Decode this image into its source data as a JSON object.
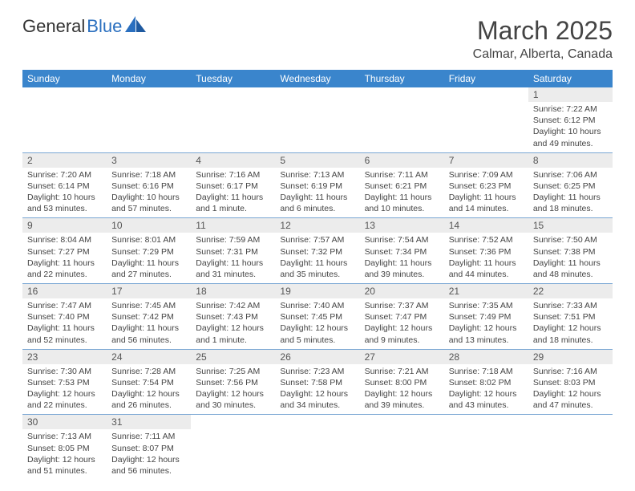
{
  "logo": {
    "part1": "General",
    "part2": "Blue",
    "icon_color": "#2a6fbf"
  },
  "header": {
    "title": "March 2025",
    "location": "Calmar, Alberta, Canada",
    "title_fontsize": 32,
    "location_fontsize": 16,
    "title_color": "#444444"
  },
  "calendar": {
    "header_bg": "#3a85cc",
    "header_fg": "#ffffff",
    "row_border": "#7aa7d4",
    "daynum_bg": "#ececec",
    "days": [
      "Sunday",
      "Monday",
      "Tuesday",
      "Wednesday",
      "Thursday",
      "Friday",
      "Saturday"
    ],
    "weeks": [
      [
        null,
        null,
        null,
        null,
        null,
        null,
        {
          "n": "1",
          "sunrise": "Sunrise: 7:22 AM",
          "sunset": "Sunset: 6:12 PM",
          "daylight": "Daylight: 10 hours and 49 minutes."
        }
      ],
      [
        {
          "n": "2",
          "sunrise": "Sunrise: 7:20 AM",
          "sunset": "Sunset: 6:14 PM",
          "daylight": "Daylight: 10 hours and 53 minutes."
        },
        {
          "n": "3",
          "sunrise": "Sunrise: 7:18 AM",
          "sunset": "Sunset: 6:16 PM",
          "daylight": "Daylight: 10 hours and 57 minutes."
        },
        {
          "n": "4",
          "sunrise": "Sunrise: 7:16 AM",
          "sunset": "Sunset: 6:17 PM",
          "daylight": "Daylight: 11 hours and 1 minute."
        },
        {
          "n": "5",
          "sunrise": "Sunrise: 7:13 AM",
          "sunset": "Sunset: 6:19 PM",
          "daylight": "Daylight: 11 hours and 6 minutes."
        },
        {
          "n": "6",
          "sunrise": "Sunrise: 7:11 AM",
          "sunset": "Sunset: 6:21 PM",
          "daylight": "Daylight: 11 hours and 10 minutes."
        },
        {
          "n": "7",
          "sunrise": "Sunrise: 7:09 AM",
          "sunset": "Sunset: 6:23 PM",
          "daylight": "Daylight: 11 hours and 14 minutes."
        },
        {
          "n": "8",
          "sunrise": "Sunrise: 7:06 AM",
          "sunset": "Sunset: 6:25 PM",
          "daylight": "Daylight: 11 hours and 18 minutes."
        }
      ],
      [
        {
          "n": "9",
          "sunrise": "Sunrise: 8:04 AM",
          "sunset": "Sunset: 7:27 PM",
          "daylight": "Daylight: 11 hours and 22 minutes."
        },
        {
          "n": "10",
          "sunrise": "Sunrise: 8:01 AM",
          "sunset": "Sunset: 7:29 PM",
          "daylight": "Daylight: 11 hours and 27 minutes."
        },
        {
          "n": "11",
          "sunrise": "Sunrise: 7:59 AM",
          "sunset": "Sunset: 7:31 PM",
          "daylight": "Daylight: 11 hours and 31 minutes."
        },
        {
          "n": "12",
          "sunrise": "Sunrise: 7:57 AM",
          "sunset": "Sunset: 7:32 PM",
          "daylight": "Daylight: 11 hours and 35 minutes."
        },
        {
          "n": "13",
          "sunrise": "Sunrise: 7:54 AM",
          "sunset": "Sunset: 7:34 PM",
          "daylight": "Daylight: 11 hours and 39 minutes."
        },
        {
          "n": "14",
          "sunrise": "Sunrise: 7:52 AM",
          "sunset": "Sunset: 7:36 PM",
          "daylight": "Daylight: 11 hours and 44 minutes."
        },
        {
          "n": "15",
          "sunrise": "Sunrise: 7:50 AM",
          "sunset": "Sunset: 7:38 PM",
          "daylight": "Daylight: 11 hours and 48 minutes."
        }
      ],
      [
        {
          "n": "16",
          "sunrise": "Sunrise: 7:47 AM",
          "sunset": "Sunset: 7:40 PM",
          "daylight": "Daylight: 11 hours and 52 minutes."
        },
        {
          "n": "17",
          "sunrise": "Sunrise: 7:45 AM",
          "sunset": "Sunset: 7:42 PM",
          "daylight": "Daylight: 11 hours and 56 minutes."
        },
        {
          "n": "18",
          "sunrise": "Sunrise: 7:42 AM",
          "sunset": "Sunset: 7:43 PM",
          "daylight": "Daylight: 12 hours and 1 minute."
        },
        {
          "n": "19",
          "sunrise": "Sunrise: 7:40 AM",
          "sunset": "Sunset: 7:45 PM",
          "daylight": "Daylight: 12 hours and 5 minutes."
        },
        {
          "n": "20",
          "sunrise": "Sunrise: 7:37 AM",
          "sunset": "Sunset: 7:47 PM",
          "daylight": "Daylight: 12 hours and 9 minutes."
        },
        {
          "n": "21",
          "sunrise": "Sunrise: 7:35 AM",
          "sunset": "Sunset: 7:49 PM",
          "daylight": "Daylight: 12 hours and 13 minutes."
        },
        {
          "n": "22",
          "sunrise": "Sunrise: 7:33 AM",
          "sunset": "Sunset: 7:51 PM",
          "daylight": "Daylight: 12 hours and 18 minutes."
        }
      ],
      [
        {
          "n": "23",
          "sunrise": "Sunrise: 7:30 AM",
          "sunset": "Sunset: 7:53 PM",
          "daylight": "Daylight: 12 hours and 22 minutes."
        },
        {
          "n": "24",
          "sunrise": "Sunrise: 7:28 AM",
          "sunset": "Sunset: 7:54 PM",
          "daylight": "Daylight: 12 hours and 26 minutes."
        },
        {
          "n": "25",
          "sunrise": "Sunrise: 7:25 AM",
          "sunset": "Sunset: 7:56 PM",
          "daylight": "Daylight: 12 hours and 30 minutes."
        },
        {
          "n": "26",
          "sunrise": "Sunrise: 7:23 AM",
          "sunset": "Sunset: 7:58 PM",
          "daylight": "Daylight: 12 hours and 34 minutes."
        },
        {
          "n": "27",
          "sunrise": "Sunrise: 7:21 AM",
          "sunset": "Sunset: 8:00 PM",
          "daylight": "Daylight: 12 hours and 39 minutes."
        },
        {
          "n": "28",
          "sunrise": "Sunrise: 7:18 AM",
          "sunset": "Sunset: 8:02 PM",
          "daylight": "Daylight: 12 hours and 43 minutes."
        },
        {
          "n": "29",
          "sunrise": "Sunrise: 7:16 AM",
          "sunset": "Sunset: 8:03 PM",
          "daylight": "Daylight: 12 hours and 47 minutes."
        }
      ],
      [
        {
          "n": "30",
          "sunrise": "Sunrise: 7:13 AM",
          "sunset": "Sunset: 8:05 PM",
          "daylight": "Daylight: 12 hours and 51 minutes."
        },
        {
          "n": "31",
          "sunrise": "Sunrise: 7:11 AM",
          "sunset": "Sunset: 8:07 PM",
          "daylight": "Daylight: 12 hours and 56 minutes."
        },
        null,
        null,
        null,
        null,
        null
      ]
    ]
  }
}
